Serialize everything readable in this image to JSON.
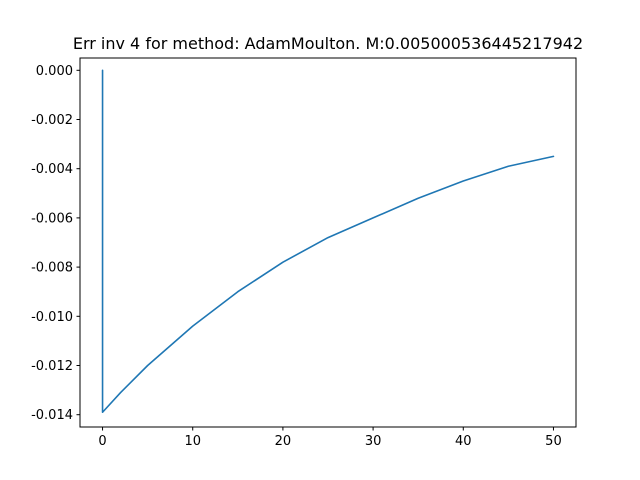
{
  "chart_data": {
    "type": "line",
    "title": "Err inv 4 for method: AdamMoulton. M:0.005000536445217942",
    "xlabel": "",
    "ylabel": "",
    "xlim": [
      -2.5,
      52.5
    ],
    "ylim": [
      -0.0145,
      0.0005
    ],
    "x_ticks": [
      0,
      10,
      20,
      30,
      40,
      50
    ],
    "y_ticks": [
      0.0,
      -0.002,
      -0.004,
      -0.006,
      -0.008,
      -0.01,
      -0.012,
      -0.014
    ],
    "x_tick_labels": [
      "0",
      "10",
      "20",
      "30",
      "40",
      "50"
    ],
    "y_tick_labels": [
      "0.000",
      "-0.002",
      "-0.004",
      "-0.006",
      "-0.008",
      "-0.010",
      "-0.012",
      "-0.014"
    ],
    "grid": false,
    "series": [
      {
        "color": "#1f77b4",
        "x": [
          0,
          0,
          2,
          5,
          10,
          15,
          20,
          25,
          30,
          35,
          40,
          45,
          50
        ],
        "y": [
          0.0,
          -0.0139,
          -0.0131,
          -0.012,
          -0.0104,
          -0.009,
          -0.0078,
          -0.0068,
          -0.006,
          -0.0052,
          -0.0045,
          -0.0039,
          -0.0035
        ]
      }
    ]
  }
}
